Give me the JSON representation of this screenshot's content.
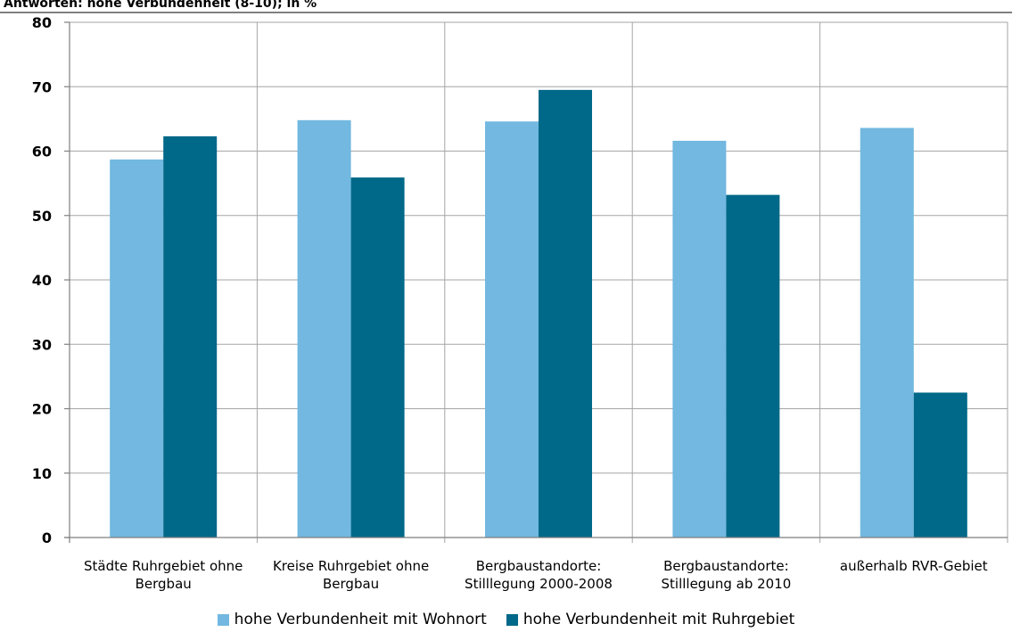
{
  "chart_data": {
    "type": "bar",
    "title": "Antworten: hohe Verbundenheit (8-10); in %",
    "categories": [
      [
        "Städte Ruhrgebiet ohne",
        "Bergbau"
      ],
      [
        "Kreise Ruhrgebiet ohne",
        "Bergbau"
      ],
      [
        "Bergbaustandorte:",
        "Stilllegung 2000-2008"
      ],
      [
        "Bergbaustandorte:",
        "Stilllegung ab 2010"
      ],
      [
        "außerhalb RVR-Gebiet"
      ]
    ],
    "series": [
      {
        "name": "hohe Verbundenheit mit Wohnort",
        "color": "#72b8e0",
        "values": [
          58.7,
          64.8,
          64.6,
          61.6,
          63.6
        ]
      },
      {
        "name": "hohe Verbundenheit mit Ruhrgebiet",
        "color": "#006888",
        "values": [
          62.3,
          55.9,
          69.5,
          53.2,
          22.5
        ]
      }
    ],
    "ylim": [
      0,
      80
    ],
    "yticks": [
      0,
      10,
      20,
      30,
      40,
      50,
      60,
      70,
      80
    ],
    "grid": true,
    "legend": "bottom"
  }
}
